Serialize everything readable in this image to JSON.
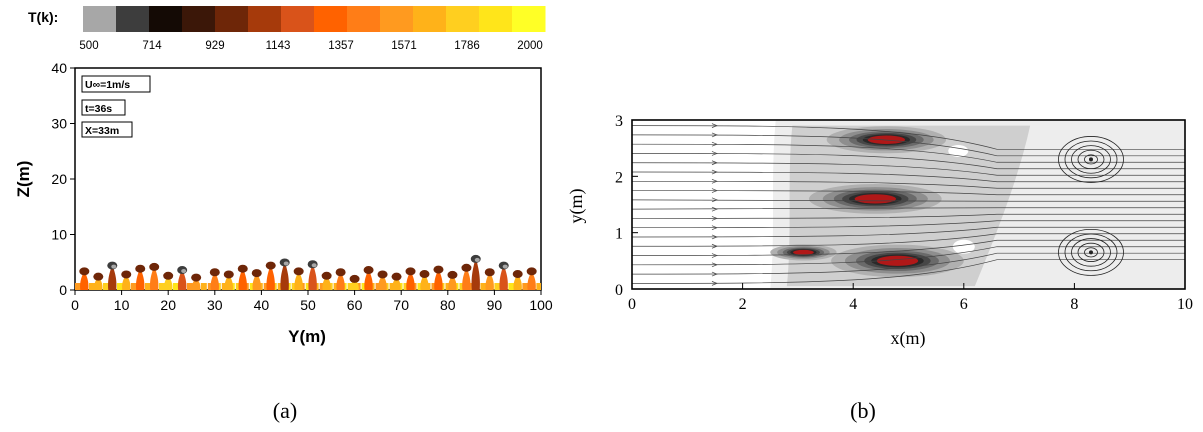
{
  "chart_data": [
    {
      "type": "heatmap",
      "colorbar": {
        "label": "T(k):",
        "ticks": [
          "500",
          "714",
          "929",
          "1143",
          "1357",
          "1571",
          "1786",
          "2000"
        ],
        "colors": [
          "#a7a7a7",
          "#3d3d3d",
          "#140a05",
          "#3b1708",
          "#6e2608",
          "#a63a0b",
          "#d9531a",
          "#ff6200",
          "#ff7d17",
          "#ff9a1f",
          "#ffb219",
          "#ffcf1f",
          "#ffe51a",
          "#ffff26"
        ]
      },
      "xlabel": "Y(m)",
      "ylabel": "Z(m)",
      "xlim": [
        0,
        100
      ],
      "ylim": [
        0,
        40
      ],
      "xticks": [
        "0",
        "10",
        "20",
        "30",
        "40",
        "50",
        "60",
        "70",
        "80",
        "90",
        "100"
      ],
      "yticks": [
        "0",
        "10",
        "20",
        "30",
        "40"
      ],
      "annotations": [
        "U∞=1m/s",
        "t=36s",
        "X=33m"
      ],
      "plumes": [
        {
          "y": 2,
          "h": 4.2,
          "t": 0.55
        },
        {
          "y": 5,
          "h": 3.0,
          "t": 0.75
        },
        {
          "y": 8,
          "h": 5.5,
          "t": 0.4
        },
        {
          "y": 11,
          "h": 3.5,
          "t": 0.8
        },
        {
          "y": 14,
          "h": 4.8,
          "t": 0.5
        },
        {
          "y": 17,
          "h": 5.2,
          "t": 0.65
        },
        {
          "y": 20,
          "h": 3.2,
          "t": 0.85
        },
        {
          "y": 23,
          "h": 4.5,
          "t": 0.45
        },
        {
          "y": 26,
          "h": 2.8,
          "t": 0.7
        },
        {
          "y": 30,
          "h": 4.0,
          "t": 0.6
        },
        {
          "y": 33,
          "h": 3.5,
          "t": 0.8
        },
        {
          "y": 36,
          "h": 4.8,
          "t": 0.55
        },
        {
          "y": 39,
          "h": 3.8,
          "t": 0.7
        },
        {
          "y": 42,
          "h": 5.5,
          "t": 0.5
        },
        {
          "y": 45,
          "h": 6.2,
          "t": 0.35
        },
        {
          "y": 48,
          "h": 4.2,
          "t": 0.75
        },
        {
          "y": 51,
          "h": 5.8,
          "t": 0.45
        },
        {
          "y": 54,
          "h": 3.2,
          "t": 0.8
        },
        {
          "y": 57,
          "h": 4.0,
          "t": 0.6
        },
        {
          "y": 60,
          "h": 2.5,
          "t": 0.85
        },
        {
          "y": 63,
          "h": 4.5,
          "t": 0.5
        },
        {
          "y": 66,
          "h": 3.5,
          "t": 0.7
        },
        {
          "y": 69,
          "h": 3.0,
          "t": 0.8
        },
        {
          "y": 72,
          "h": 4.2,
          "t": 0.55
        },
        {
          "y": 75,
          "h": 3.6,
          "t": 0.75
        },
        {
          "y": 78,
          "h": 4.6,
          "t": 0.5
        },
        {
          "y": 81,
          "h": 3.4,
          "t": 0.7
        },
        {
          "y": 84,
          "h": 5.0,
          "t": 0.6
        },
        {
          "y": 86,
          "h": 7.0,
          "t": 0.4
        },
        {
          "y": 89,
          "h": 4.0,
          "t": 0.7
        },
        {
          "y": 92,
          "h": 5.5,
          "t": 0.45
        },
        {
          "y": 95,
          "h": 3.6,
          "t": 0.8
        },
        {
          "y": 98,
          "h": 4.2,
          "t": 0.6
        }
      ]
    },
    {
      "type": "heatmap",
      "xlabel": "x(m)",
      "ylabel": "y(m)",
      "xlim": [
        0,
        10
      ],
      "ylim": [
        0,
        3
      ],
      "xticks": [
        "0",
        "2",
        "4",
        "6",
        "8",
        "10"
      ],
      "yticks": [
        "0",
        "1",
        "2",
        "3"
      ],
      "grays": [
        "#ededed",
        "#cfcfcf",
        "#b0b0b0",
        "#8e8e8e",
        "#6a6a6a",
        "#474747",
        "#2a2a2a"
      ],
      "core_color": "#b01818",
      "hot_cores": [
        {
          "x": 4.6,
          "y": 2.65,
          "rx": 0.45,
          "ry": 0.1
        },
        {
          "x": 4.4,
          "y": 1.6,
          "rx": 0.5,
          "ry": 0.11
        },
        {
          "x": 4.8,
          "y": 0.5,
          "rx": 0.5,
          "ry": 0.12
        },
        {
          "x": 3.1,
          "y": 0.65,
          "rx": 0.25,
          "ry": 0.06
        }
      ],
      "vortices": [
        {
          "x": 8.3,
          "y": 2.3
        },
        {
          "x": 8.3,
          "y": 0.65
        }
      ]
    }
  ],
  "captions": {
    "left": "(a)",
    "right": "(b)"
  }
}
